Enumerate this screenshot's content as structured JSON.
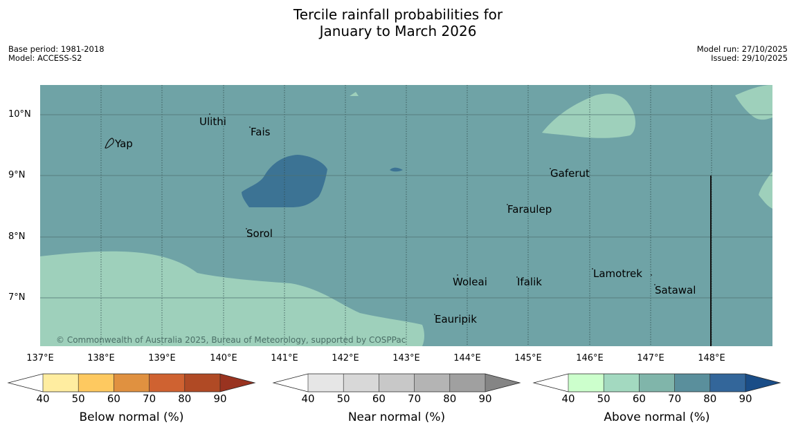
{
  "title": {
    "line1": "Tercile rainfall probabilities for",
    "line2": "January to March 2026"
  },
  "meta_left": {
    "base_period": "Base period: 1981-2018",
    "model": "Model: ACCESS-S2"
  },
  "meta_right": {
    "model_run": "Model run: 27/10/2025",
    "issued": "Issued: 29/10/2025"
  },
  "map": {
    "lon_range": [
      137,
      149
    ],
    "lat_range": [
      6.2,
      10.5
    ],
    "lat_ticks": [
      "10°N",
      "9°N",
      "8°N",
      "7°N"
    ],
    "lon_ticks": [
      "137°E",
      "138°E",
      "139°E",
      "140°E",
      "141°E",
      "142°E",
      "143°E",
      "144°E",
      "145°E",
      "146°E",
      "147°E",
      "148°E"
    ],
    "colors": {
      "background_60_70": "#6fa3a6",
      "region_50_60": "#9ed0bb",
      "region_80_90": "#3c7394"
    },
    "places": [
      "Yap",
      "Ulithi",
      "Fais",
      "Gaferut",
      "Faraulep",
      "Sorol",
      "Woleai",
      "Ifalik",
      "Lamotrek",
      "Satawal",
      "Eauripik"
    ],
    "copyright": "© Commonwealth of Australia 2025, Bureau of Meteorology, supported by COSPPac"
  },
  "colorbars": [
    {
      "label": "Below normal (%)",
      "ticks": [
        "40",
        "50",
        "60",
        "70",
        "80",
        "90"
      ],
      "colors": [
        "#ffffff",
        "#ffeda0",
        "#fec960",
        "#e09140",
        "#cf6231",
        "#b04a25",
        "#993320"
      ]
    },
    {
      "label": "Near normal (%)",
      "ticks": [
        "40",
        "50",
        "60",
        "70",
        "80",
        "90"
      ],
      "colors": [
        "#ffffff",
        "#e6e6e6",
        "#d8d8d8",
        "#c8c8c8",
        "#b4b4b4",
        "#a0a0a0",
        "#858585"
      ]
    },
    {
      "label": "Above normal (%)",
      "ticks": [
        "40",
        "50",
        "60",
        "70",
        "80",
        "90"
      ],
      "colors": [
        "#ffffff",
        "#ccffcc",
        "#a3d9c0",
        "#80b5aa",
        "#5a8f9c",
        "#33669a",
        "#1a4d87"
      ]
    }
  ]
}
